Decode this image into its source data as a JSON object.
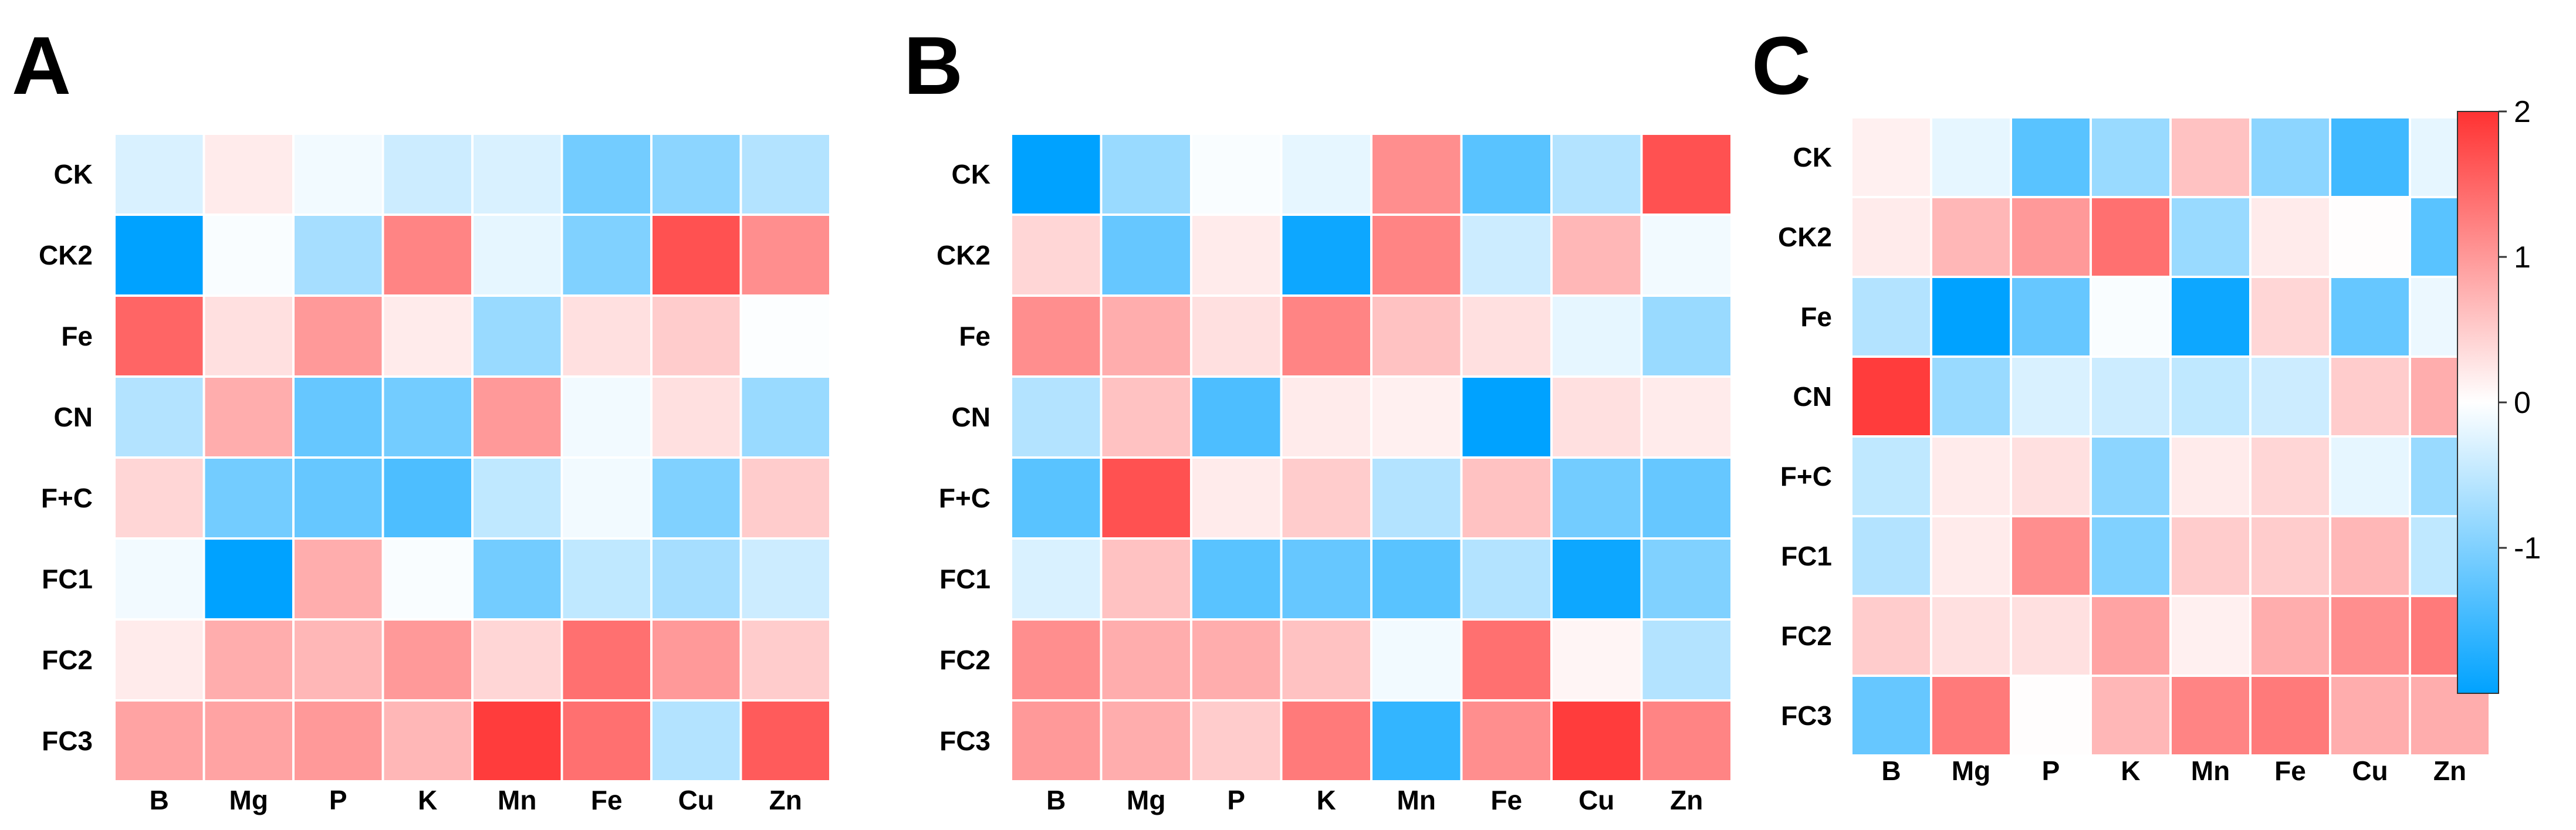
{
  "chart_data": {
    "type": "heatmap",
    "color_scale": {
      "min": -2,
      "max": 2,
      "low_color": "#00a2ff",
      "mid_color": "#ffffff",
      "high_color": "#ff3232"
    },
    "colorbar_ticks": [
      {
        "value": 2,
        "label": "2"
      },
      {
        "value": 1,
        "label": "1"
      },
      {
        "value": 0,
        "label": "0"
      },
      {
        "value": -1,
        "label": "-1"
      }
    ],
    "panels": [
      {
        "letter": "A",
        "rows": [
          "CK",
          "CK2",
          "Fe",
          "CN",
          "F+C",
          "FC1",
          "FC2",
          "FC3"
        ],
        "columns": [
          "B",
          "Mg",
          "P",
          "K",
          "Mn",
          "Fe",
          "Cu",
          "Zn"
        ],
        "values": [
          [
            -0.3,
            0.2,
            -0.1,
            -0.4,
            -0.3,
            -1.1,
            -0.9,
            -0.6
          ],
          [
            -2.0,
            -0.05,
            -0.7,
            1.2,
            -0.2,
            -1.0,
            1.7,
            1.1
          ],
          [
            1.5,
            0.3,
            1.0,
            0.2,
            -0.8,
            0.3,
            0.5,
            -0.02
          ],
          [
            -0.6,
            0.8,
            -1.2,
            -1.1,
            1.0,
            -0.1,
            0.3,
            -0.8
          ],
          [
            0.4,
            -1.1,
            -1.2,
            -1.4,
            -0.5,
            -0.1,
            -1.0,
            0.5
          ],
          [
            -0.1,
            -2.0,
            0.8,
            -0.05,
            -1.1,
            -0.5,
            -0.7,
            -0.4
          ],
          [
            0.2,
            0.8,
            0.7,
            1.0,
            0.4,
            1.4,
            1.0,
            0.5
          ],
          [
            0.9,
            0.9,
            1.0,
            0.7,
            1.9,
            1.4,
            -0.6,
            1.6
          ]
        ]
      },
      {
        "letter": "B",
        "rows": [
          "CK",
          "CK2",
          "Fe",
          "CN",
          "F+C",
          "FC1",
          "FC2",
          "FC3"
        ],
        "columns": [
          "B",
          "Mg",
          "P",
          "K",
          "Mn",
          "Fe",
          "Cu",
          "Zn"
        ],
        "values": [
          [
            -2.0,
            -0.8,
            -0.05,
            -0.2,
            1.1,
            -1.3,
            -0.6,
            1.7
          ],
          [
            0.4,
            -1.2,
            0.2,
            -1.9,
            1.2,
            -0.4,
            0.7,
            -0.1
          ],
          [
            1.1,
            0.8,
            0.3,
            1.2,
            0.6,
            0.3,
            -0.2,
            -0.8
          ],
          [
            -0.6,
            0.6,
            -1.4,
            0.2,
            0.15,
            -2.0,
            0.3,
            0.2
          ],
          [
            -1.3,
            1.7,
            0.2,
            0.5,
            -0.6,
            0.6,
            -1.1,
            -1.2
          ],
          [
            -0.3,
            0.6,
            -1.3,
            -1.2,
            -1.3,
            -0.6,
            -1.9,
            -1.0
          ],
          [
            1.1,
            0.8,
            0.8,
            0.6,
            -0.1,
            1.4,
            0.1,
            -0.6
          ],
          [
            1.0,
            0.8,
            0.5,
            1.3,
            -1.6,
            1.1,
            1.9,
            1.2
          ]
        ]
      },
      {
        "letter": "C",
        "rows": [
          "CK",
          "CK2",
          "Fe",
          "CN",
          "F+C",
          "FC1",
          "FC2",
          "FC3"
        ],
        "columns": [
          "B",
          "Mg",
          "P",
          "K",
          "Mn",
          "Fe",
          "Cu",
          "Zn"
        ],
        "values": [
          [
            0.15,
            -0.2,
            -1.3,
            -0.8,
            0.6,
            -0.9,
            -1.5,
            -0.2
          ],
          [
            0.2,
            0.7,
            1.0,
            1.4,
            -0.8,
            0.2,
            0.02,
            -1.3
          ],
          [
            -0.6,
            -2.0,
            -1.2,
            -0.05,
            -1.9,
            0.4,
            -1.2,
            -0.15
          ],
          [
            1.9,
            -0.8,
            -0.3,
            -0.4,
            -0.5,
            -0.4,
            0.5,
            0.8
          ],
          [
            -0.5,
            0.2,
            0.3,
            -0.9,
            0.2,
            0.4,
            -0.2,
            -0.8
          ],
          [
            -0.6,
            0.2,
            1.1,
            -1.0,
            0.5,
            0.5,
            0.7,
            -0.5
          ],
          [
            0.5,
            0.3,
            0.3,
            0.9,
            0.15,
            0.8,
            1.1,
            1.3
          ],
          [
            -1.2,
            1.3,
            0.02,
            0.7,
            1.2,
            1.3,
            0.8,
            0.8
          ]
        ]
      }
    ]
  }
}
